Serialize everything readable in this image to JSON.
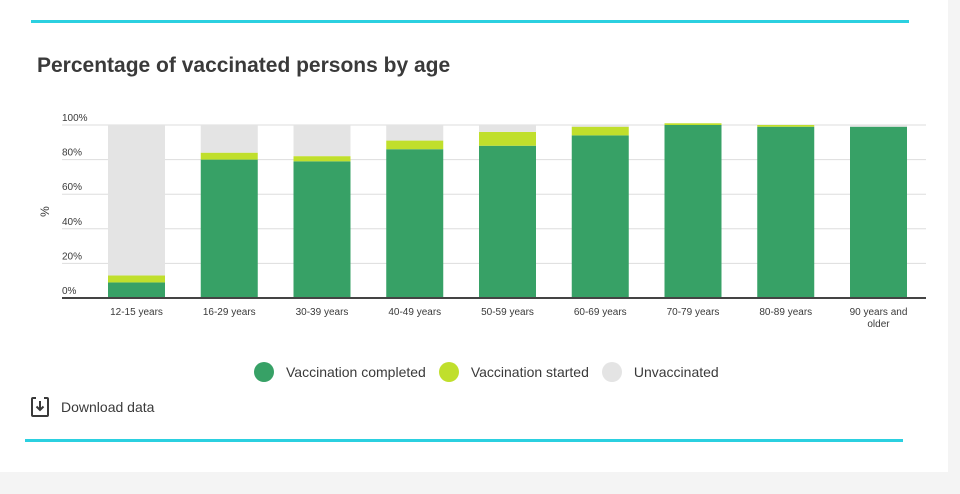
{
  "colors": {
    "completed": "#37a166",
    "started": "#c0df2c",
    "unvaccinated": "#e4e4e4",
    "accent": "#2bd0e0",
    "axis": "#444444",
    "grid": "#dddddd",
    "text": "#3a3a3a"
  },
  "legend": {
    "completed": "Vaccination completed",
    "started": "Vaccination started",
    "unvaccinated": "Unvaccinated"
  },
  "actions": {
    "download_label": "Download data",
    "download_icon": "download-icon"
  },
  "chart_data": {
    "type": "bar",
    "stacked": true,
    "title": "Percentage of vaccinated persons by age",
    "xlabel": "",
    "ylabel": "%",
    "ylim": [
      0,
      100
    ],
    "yticks": [
      0,
      20,
      40,
      60,
      80,
      100
    ],
    "ytick_labels": [
      "0%",
      "20%",
      "40%",
      "60%",
      "80%",
      "100%"
    ],
    "grid": true,
    "legend_position": "bottom",
    "categories": [
      [
        "12-15 years"
      ],
      [
        "16-29 years"
      ],
      [
        "30-39 years"
      ],
      [
        "40-49 years"
      ],
      [
        "50-59 years"
      ],
      [
        "60-69 years"
      ],
      [
        "70-79 years"
      ],
      [
        "80-89 years"
      ],
      [
        "90 years and",
        "older"
      ]
    ],
    "series": [
      {
        "name": "Vaccination completed",
        "key": "completed",
        "values": [
          9,
          80,
          79,
          86,
          88,
          94,
          100,
          99,
          99
        ]
      },
      {
        "name": "Vaccination started",
        "key": "started",
        "values": [
          4,
          4,
          3,
          5,
          8,
          5,
          1,
          1,
          0
        ]
      },
      {
        "name": "Unvaccinated",
        "key": "unvaccinated",
        "values": [
          87,
          16,
          18,
          9,
          4,
          1,
          0,
          0,
          1
        ]
      }
    ]
  }
}
